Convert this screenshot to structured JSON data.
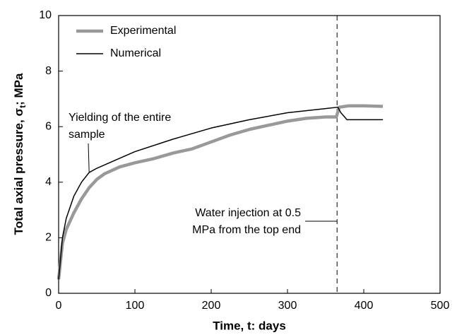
{
  "chart_data": {
    "type": "line",
    "x_label": "Time, t: days",
    "y_label": "Total axial pressure, σ",
    "y_label_subscript": "t",
    "y_label_suffix": "; MPa",
    "xlim": [
      0,
      500
    ],
    "ylim": [
      0,
      10
    ],
    "xticks": [
      0,
      100,
      200,
      300,
      400,
      500
    ],
    "yticks": [
      0,
      2,
      4,
      6,
      8,
      10
    ],
    "legend": "upper left",
    "vline": 365,
    "series": [
      {
        "name": "Experimental",
        "color": "#999999",
        "x": [
          0,
          5,
          10,
          20,
          30,
          40,
          50,
          60,
          80,
          100,
          125,
          150,
          175,
          200,
          225,
          250,
          275,
          300,
          325,
          350,
          364,
          368,
          380,
          400,
          425
        ],
        "values": [
          0.5,
          1.8,
          2.3,
          2.9,
          3.4,
          3.8,
          4.1,
          4.3,
          4.55,
          4.7,
          4.85,
          5.05,
          5.2,
          5.45,
          5.7,
          5.9,
          6.05,
          6.2,
          6.3,
          6.35,
          6.35,
          6.7,
          6.75,
          6.75,
          6.73
        ]
      },
      {
        "name": "Numerical",
        "color": "#000000",
        "x": [
          0,
          5,
          10,
          20,
          30,
          40,
          50,
          75,
          100,
          150,
          200,
          250,
          300,
          350,
          366,
          370,
          378,
          425
        ],
        "values": [
          0.5,
          2.0,
          2.7,
          3.5,
          4.0,
          4.35,
          4.5,
          4.8,
          5.1,
          5.55,
          5.95,
          6.25,
          6.5,
          6.65,
          6.7,
          6.5,
          6.25,
          6.25
        ]
      }
    ],
    "annotations": [
      {
        "lines": [
          "Yielding of the entire",
          "sample"
        ]
      },
      {
        "lines": [
          "Water injection at 0.5",
          "MPa from the top end"
        ]
      }
    ]
  }
}
